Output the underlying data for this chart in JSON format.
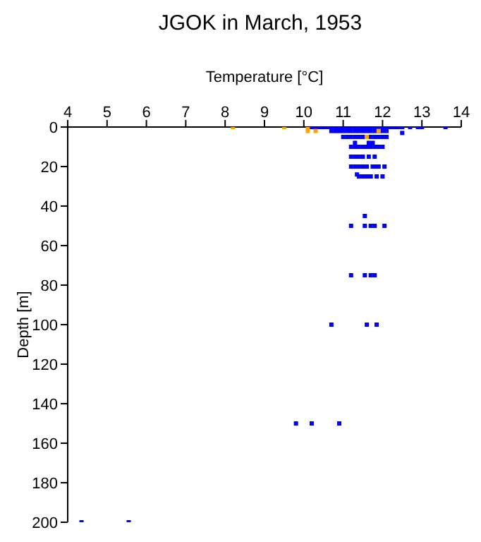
{
  "chart_data": {
    "type": "scatter",
    "title": "JGOK in March, 1953",
    "xlabel": "Temperature [°C]",
    "ylabel": "Depth [m]",
    "xlim": [
      4,
      14
    ],
    "xticks": [
      4,
      5,
      6,
      7,
      8,
      9,
      10,
      11,
      12,
      13,
      14
    ],
    "ylim": [
      200,
      0
    ],
    "yticks": [
      0,
      20,
      40,
      60,
      80,
      100,
      120,
      140,
      160,
      180,
      200
    ],
    "marker": "square",
    "series": [
      {
        "color": "#0000ff",
        "x": [
          10.2,
          10.3,
          10.4,
          10.5,
          10.6,
          10.7,
          10.8,
          10.9,
          11.0,
          11.1,
          11.2,
          11.3,
          11.4,
          11.5,
          11.6,
          11.7,
          11.8,
          11.9,
          12.0,
          12.1,
          12.2,
          12.3,
          12.4,
          12.5,
          12.7,
          12.9,
          13.0,
          13.6,
          10.7,
          10.8,
          10.9,
          11.0,
          11.1,
          11.2,
          11.3,
          11.4,
          11.5,
          11.6,
          11.7,
          11.8,
          11.9,
          12.0,
          12.1,
          12.5,
          11.0,
          11.1,
          11.2,
          11.3,
          11.4,
          11.5,
          11.7,
          11.8,
          11.9,
          12.0,
          12.1,
          11.3,
          11.65,
          11.75,
          11.2,
          11.3,
          11.4,
          11.5,
          11.6,
          11.7,
          11.8,
          11.9,
          12.0,
          11.2,
          11.3,
          11.4,
          11.5,
          11.65,
          11.8,
          11.2,
          11.3,
          11.4,
          11.5,
          11.6,
          11.75,
          11.8,
          11.9,
          12.05,
          11.35,
          11.4,
          11.5,
          11.6,
          11.7,
          11.85,
          12.0,
          11.55,
          11.2,
          11.55,
          11.7,
          11.8,
          12.05,
          11.2,
          11.55,
          11.7,
          11.8,
          10.7,
          11.6,
          11.85,
          9.8,
          10.2,
          10.9,
          4.35,
          5.55
        ],
        "values": [
          0,
          0,
          0,
          0,
          0,
          0,
          0,
          0,
          0,
          0,
          0,
          0,
          0,
          0,
          0,
          0,
          0,
          0,
          0,
          0,
          0,
          0,
          0,
          0,
          0,
          0,
          0,
          0,
          2,
          2,
          2,
          2,
          2,
          2,
          2,
          2,
          2,
          2,
          2,
          2,
          2,
          2,
          2,
          3,
          5,
          5,
          5,
          5,
          5,
          5,
          5,
          5,
          5,
          5,
          5,
          8,
          8,
          8,
          10,
          10,
          10,
          10,
          10,
          10,
          10,
          10,
          10,
          15,
          15,
          15,
          15,
          15,
          15,
          20,
          20,
          20,
          20,
          20,
          20,
          20,
          20,
          20,
          24,
          25,
          25,
          25,
          25,
          25,
          25,
          45,
          50,
          50,
          50,
          50,
          50,
          75,
          75,
          75,
          75,
          100,
          100,
          100,
          150,
          150,
          150,
          200,
          200
        ]
      },
      {
        "color": "#ffa500",
        "x": [
          8.2,
          9.5,
          10.1,
          10.1,
          10.3,
          11.9,
          11.6
        ],
        "values": [
          0,
          0,
          0,
          2,
          2,
          2,
          5
        ]
      }
    ]
  }
}
